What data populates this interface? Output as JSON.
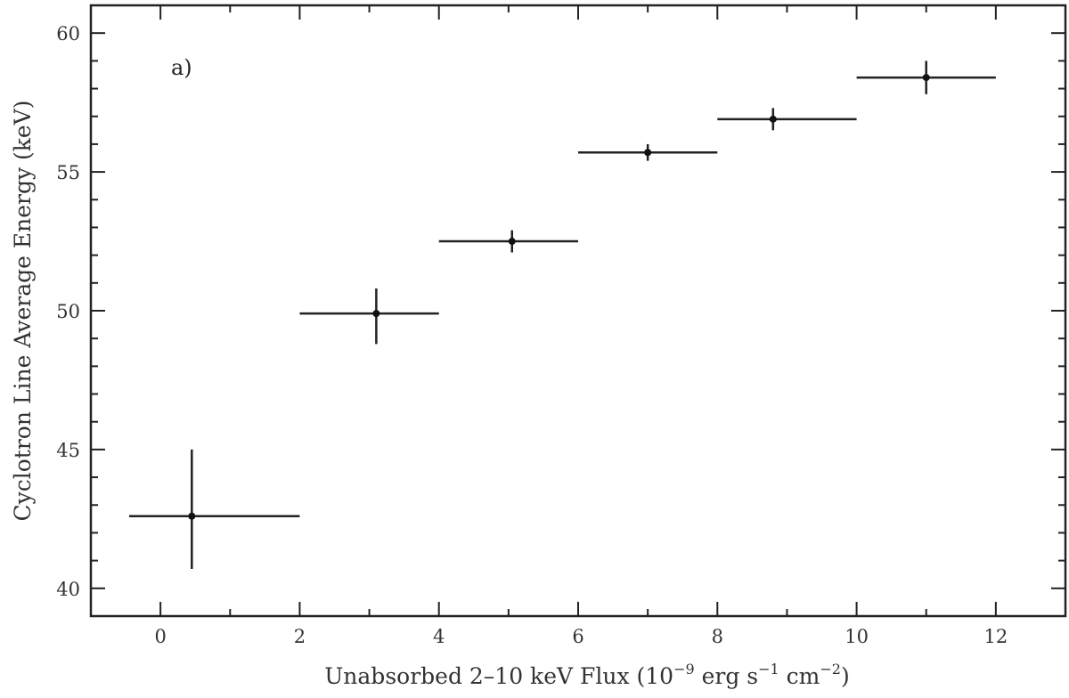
{
  "chart_data": {
    "type": "scatter",
    "panel_label": "a)",
    "xlabel_parts": {
      "main": "Unabsorbed 2–10 keV Flux (10",
      "exp1": "−9",
      "mid1": " erg s",
      "exp2": "−1",
      "mid2": " cm",
      "exp3": "−2",
      "end": ")"
    },
    "ylabel": "Cyclotron Line Average Energy (keV)",
    "xlim": [
      -1,
      13
    ],
    "ylim": [
      39,
      61
    ],
    "x_ticks_major": [
      0,
      2,
      4,
      6,
      8,
      10,
      12
    ],
    "x_tick_labels": [
      "0",
      "2",
      "4",
      "6",
      "8",
      "10",
      "12"
    ],
    "y_ticks_major": [
      40,
      45,
      50,
      55,
      60
    ],
    "y_tick_labels": [
      "40",
      "45",
      "50",
      "55",
      "60"
    ],
    "grid": false,
    "points": [
      {
        "x": 0.45,
        "y": 42.6,
        "x_lo": -0.45,
        "x_hi": 2.0,
        "y_lo": 40.7,
        "y_hi": 45.0
      },
      {
        "x": 3.1,
        "y": 49.9,
        "x_lo": 2.0,
        "x_hi": 4.0,
        "y_lo": 48.8,
        "y_hi": 50.8
      },
      {
        "x": 5.05,
        "y": 52.5,
        "x_lo": 4.0,
        "x_hi": 6.0,
        "y_lo": 52.1,
        "y_hi": 52.9
      },
      {
        "x": 7.0,
        "y": 55.7,
        "x_lo": 6.0,
        "x_hi": 8.0,
        "y_lo": 55.4,
        "y_hi": 56.0
      },
      {
        "x": 8.8,
        "y": 56.9,
        "x_lo": 8.0,
        "x_hi": 10.0,
        "y_lo": 56.5,
        "y_hi": 57.3
      },
      {
        "x": 11.0,
        "y": 58.4,
        "x_lo": 10.0,
        "x_hi": 12.0,
        "y_lo": 57.8,
        "y_hi": 59.0
      }
    ]
  }
}
